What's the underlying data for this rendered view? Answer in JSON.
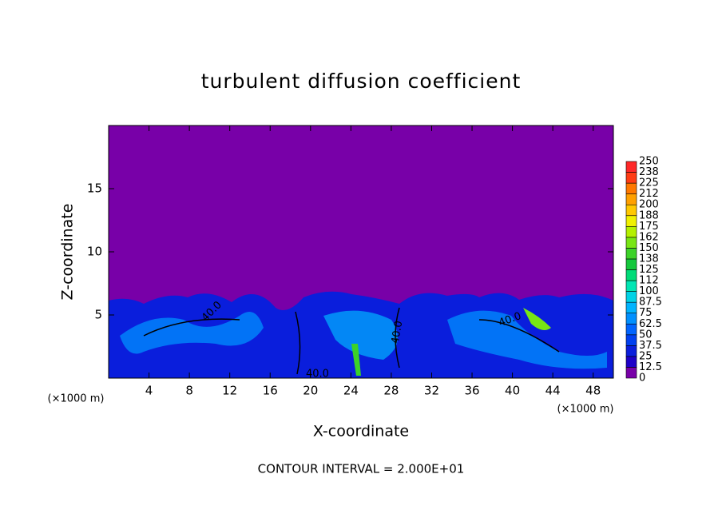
{
  "chart_data": {
    "type": "contour",
    "title": "turbulent diffusion coefficient",
    "x_label": "X-coordinate",
    "y_label": "Z-coordinate",
    "x_unit": "(×1000 m)",
    "xlim": [
      0,
      50
    ],
    "xticks": [
      4,
      8,
      12,
      16,
      20,
      24,
      28,
      32,
      36,
      40,
      44,
      48
    ],
    "ylim": [
      0,
      20
    ],
    "yticks": [
      5,
      10,
      15
    ],
    "colorbar": {
      "levels": [
        0,
        12.5,
        25,
        37.5,
        50,
        62.5,
        75,
        87.5,
        100,
        112,
        125,
        138,
        150,
        162,
        175,
        188,
        200,
        212,
        225,
        238,
        250
      ],
      "colors": [
        "#7800a8",
        "#1e00c8",
        "#0a1edc",
        "#0040f0",
        "#0064ff",
        "#0090ff",
        "#00b4ff",
        "#00d2e6",
        "#00e6b4",
        "#00dc78",
        "#14c83c",
        "#3cd228",
        "#78e614",
        "#b4f000",
        "#f0f000",
        "#ffc800",
        "#ffa000",
        "#ff7800",
        "#ff3c14",
        "#ff2828",
        "#f08080"
      ]
    },
    "contour_labels": [
      {
        "value": 40,
        "label": "40.0"
      },
      {
        "value": 40,
        "label": "40.0"
      },
      {
        "value": 40,
        "label": "40.0"
      },
      {
        "value": 40,
        "label": "40.0"
      }
    ],
    "footer": "CONTOUR INTERVAL = 2.000E+01"
  }
}
